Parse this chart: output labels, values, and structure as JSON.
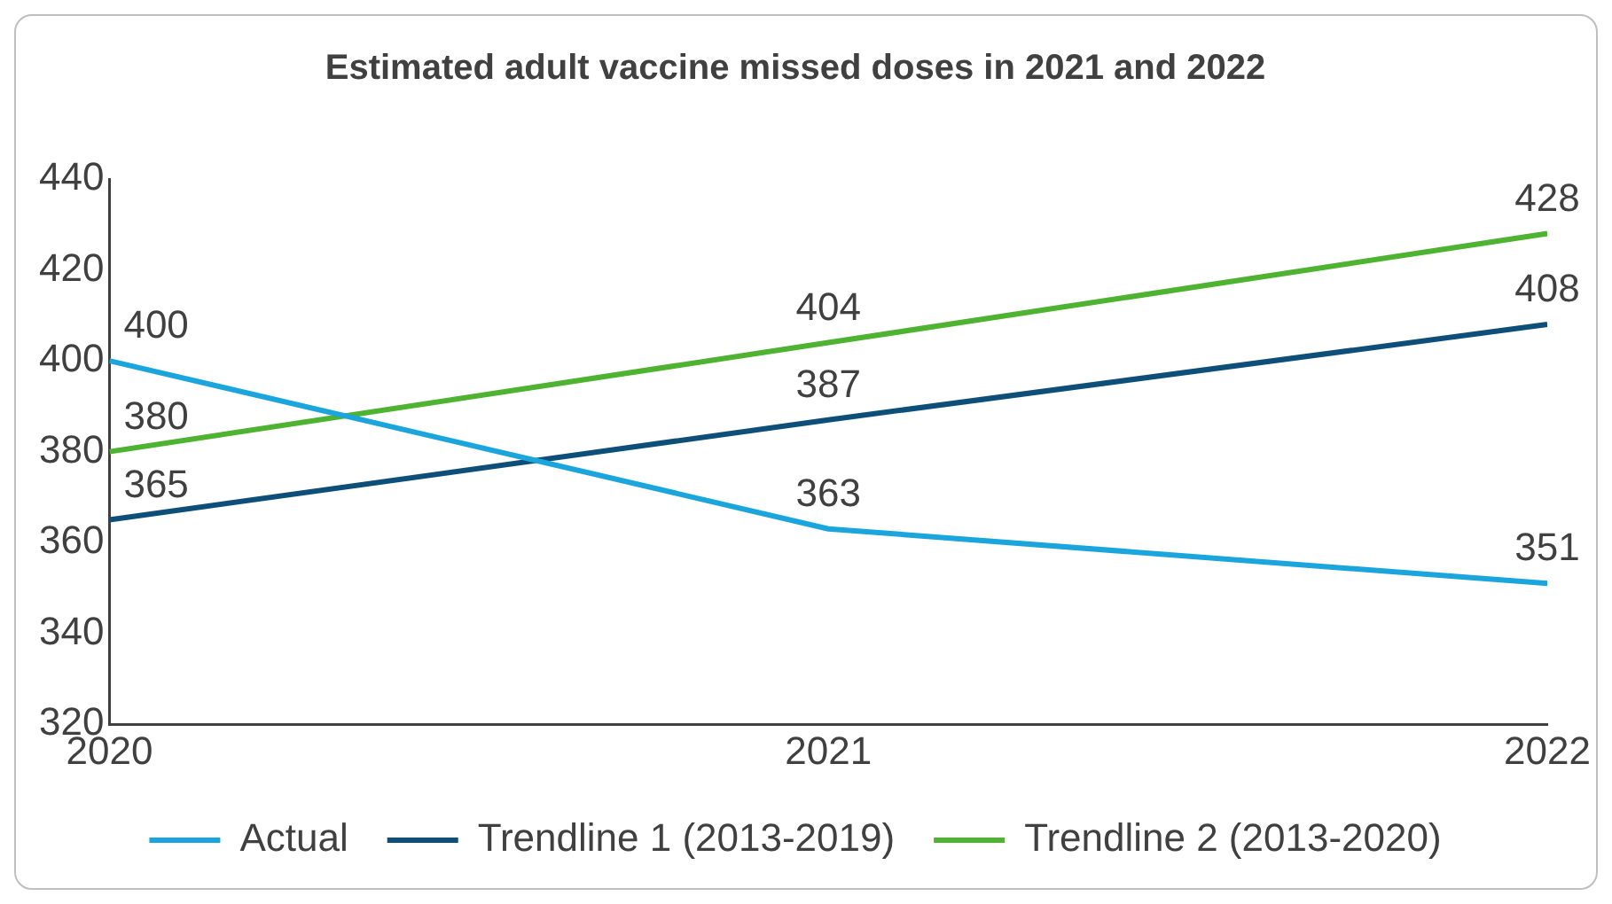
{
  "chart_data": {
    "type": "line",
    "title": "Estimated adult vaccine missed doses in 2021 and 2022",
    "x": [
      2020,
      2021,
      2022
    ],
    "series": [
      {
        "name": "Actual",
        "color": "#1ba5dd",
        "values": [
          400,
          363,
          351
        ]
      },
      {
        "name": "Trendline 1 (2013-2019)",
        "color": "#0d4f78",
        "values": [
          365,
          387,
          408
        ]
      },
      {
        "name": "Trendline 2 (2013-2020)",
        "color": "#4db331",
        "values": [
          380,
          404,
          428
        ]
      }
    ],
    "xlim": [
      2020,
      2022
    ],
    "xticks": [
      2020,
      2021,
      2022
    ],
    "ylim": [
      320,
      440
    ],
    "yticks": [
      320,
      340,
      360,
      380,
      400,
      420,
      440
    ],
    "grid": false,
    "legend": "bottom",
    "marker": "none",
    "line_style": "solid",
    "data_labels": true
  }
}
